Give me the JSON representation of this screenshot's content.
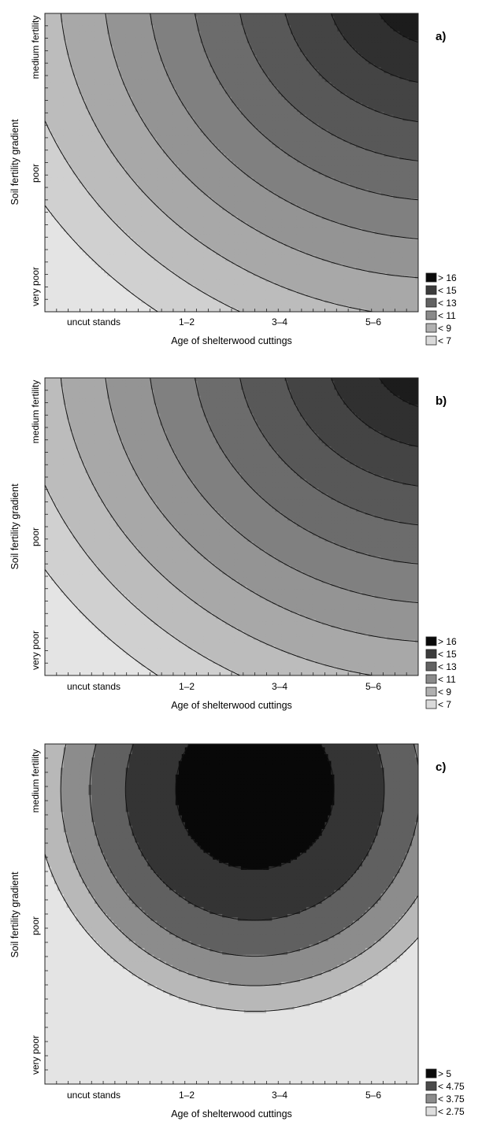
{
  "chart_data": [
    {
      "type": "contour",
      "panel_label": "a)",
      "xlabel": "Age of shelterwood cuttings",
      "ylabel": "Soil fertility gradient",
      "x_tick_labels": [
        "uncut stands",
        "1–2",
        "3–4",
        "5–6"
      ],
      "y_tick_labels": [
        "very poor",
        "poor",
        "medium fertility"
      ],
      "x_position_of_tick_labels": [
        1,
        3,
        5,
        7
      ],
      "y_position_of_tick_labels": [
        1,
        3,
        5
      ],
      "xlim": [
        0,
        8
      ],
      "ylim": [
        0,
        6
      ],
      "fill_levels": [
        6,
        7,
        8,
        9,
        10,
        11,
        12,
        13,
        14,
        15,
        16
      ],
      "surface": {
        "form": "peak",
        "center": [
          8.5,
          6.6
        ],
        "peak_value": 16.6,
        "scale_x": 1.05,
        "scale_y": 0.78
      },
      "legend": [
        {
          "label": "> 16",
          "color": "#0a0a0a"
        },
        {
          "label": "< 15",
          "color": "#3c3c3c"
        },
        {
          "label": "< 13",
          "color": "#626262"
        },
        {
          "label": "< 11",
          "color": "#8a8a8a"
        },
        {
          "label": "< 9",
          "color": "#b0b0b0"
        },
        {
          "label": "< 7",
          "color": "#dadada"
        }
      ]
    },
    {
      "type": "contour",
      "panel_label": "b)",
      "xlabel": "Age of shelterwood cuttings",
      "ylabel": "Soil fertility gradient",
      "x_tick_labels": [
        "uncut stands",
        "1–2",
        "3–4",
        "5–6"
      ],
      "y_tick_labels": [
        "very poor",
        "poor",
        "medium fertility"
      ],
      "x_position_of_tick_labels": [
        1,
        3,
        5,
        7
      ],
      "y_position_of_tick_labels": [
        1,
        3,
        5
      ],
      "xlim": [
        0,
        8
      ],
      "ylim": [
        0,
        6
      ],
      "fill_levels": [
        6,
        7,
        8,
        9,
        10,
        11,
        12,
        13,
        14,
        15,
        16
      ],
      "surface": {
        "form": "peak",
        "center": [
          8.5,
          6.6
        ],
        "peak_value": 16.6,
        "scale_x": 1.05,
        "scale_y": 0.78
      },
      "legend": [
        {
          "label": "> 16",
          "color": "#0a0a0a"
        },
        {
          "label": "< 15",
          "color": "#3c3c3c"
        },
        {
          "label": "< 13",
          "color": "#626262"
        },
        {
          "label": "< 11",
          "color": "#8a8a8a"
        },
        {
          "label": "< 9",
          "color": "#b0b0b0"
        },
        {
          "label": "< 7",
          "color": "#dadada"
        }
      ]
    },
    {
      "type": "contour",
      "panel_label": "c)",
      "xlabel": "Age of shelterwood cuttings",
      "ylabel": "Soil fertility gradient",
      "x_tick_labels": [
        "uncut stands",
        "1–2",
        "3–4",
        "5–6"
      ],
      "y_tick_labels": [
        "very poor",
        "poor",
        "medium fertility"
      ],
      "x_position_of_tick_labels": [
        1,
        3,
        5,
        7
      ],
      "y_position_of_tick_labels": [
        1,
        3,
        5
      ],
      "xlim": [
        0,
        8
      ],
      "ylim": [
        0,
        6
      ],
      "fill_levels": [
        1.75,
        2.0,
        2.25,
        2.5,
        2.75
      ],
      "surface": {
        "form": "dome",
        "center": [
          4.5,
          5.2
        ],
        "peak_value": 2.9,
        "falloff_x": 0.052,
        "falloff_y": 0.075
      },
      "legend": [
        {
          "label": "> 5",
          "color": "#0a0a0a"
        },
        {
          "label": "< 4.75",
          "color": "#4a4a4a"
        },
        {
          "label": "< 3.75",
          "color": "#8c8c8c"
        },
        {
          "label": "< 2.75",
          "color": "#dedede"
        }
      ]
    }
  ]
}
